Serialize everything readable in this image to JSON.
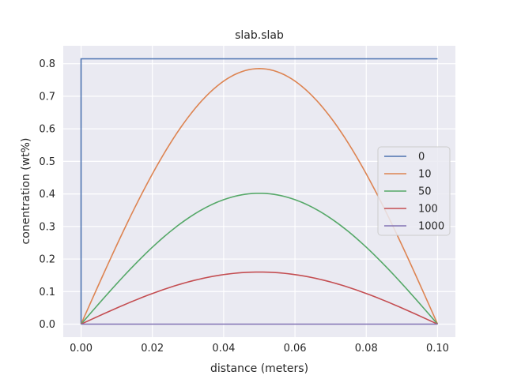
{
  "chart_data": {
    "type": "line",
    "title": "slab.slab",
    "xlabel": "distance (meters)",
    "ylabel": "conentration (wt%)",
    "xlim": [
      -0.005,
      0.105
    ],
    "ylim": [
      -0.04,
      0.855
    ],
    "xticks": [
      "0.00",
      "0.02",
      "0.04",
      "0.06",
      "0.08",
      "0.10"
    ],
    "yticks": [
      "0.0",
      "0.1",
      "0.2",
      "0.3",
      "0.4",
      "0.5",
      "0.6",
      "0.7",
      "0.8"
    ],
    "grid": true,
    "legend_position": "right",
    "series": [
      {
        "name": "0",
        "color": "#4c72b0",
        "peak": 0.815,
        "shape": "step"
      },
      {
        "name": "10",
        "color": "#dd8452",
        "peak": 0.785,
        "shape": "arch"
      },
      {
        "name": "50",
        "color": "#55a868",
        "peak": 0.402,
        "shape": "arch"
      },
      {
        "name": "100",
        "color": "#c44e52",
        "peak": 0.16,
        "shape": "arch"
      },
      {
        "name": "1000",
        "color": "#8172b3",
        "peak": 0.0,
        "shape": "arch"
      }
    ]
  }
}
